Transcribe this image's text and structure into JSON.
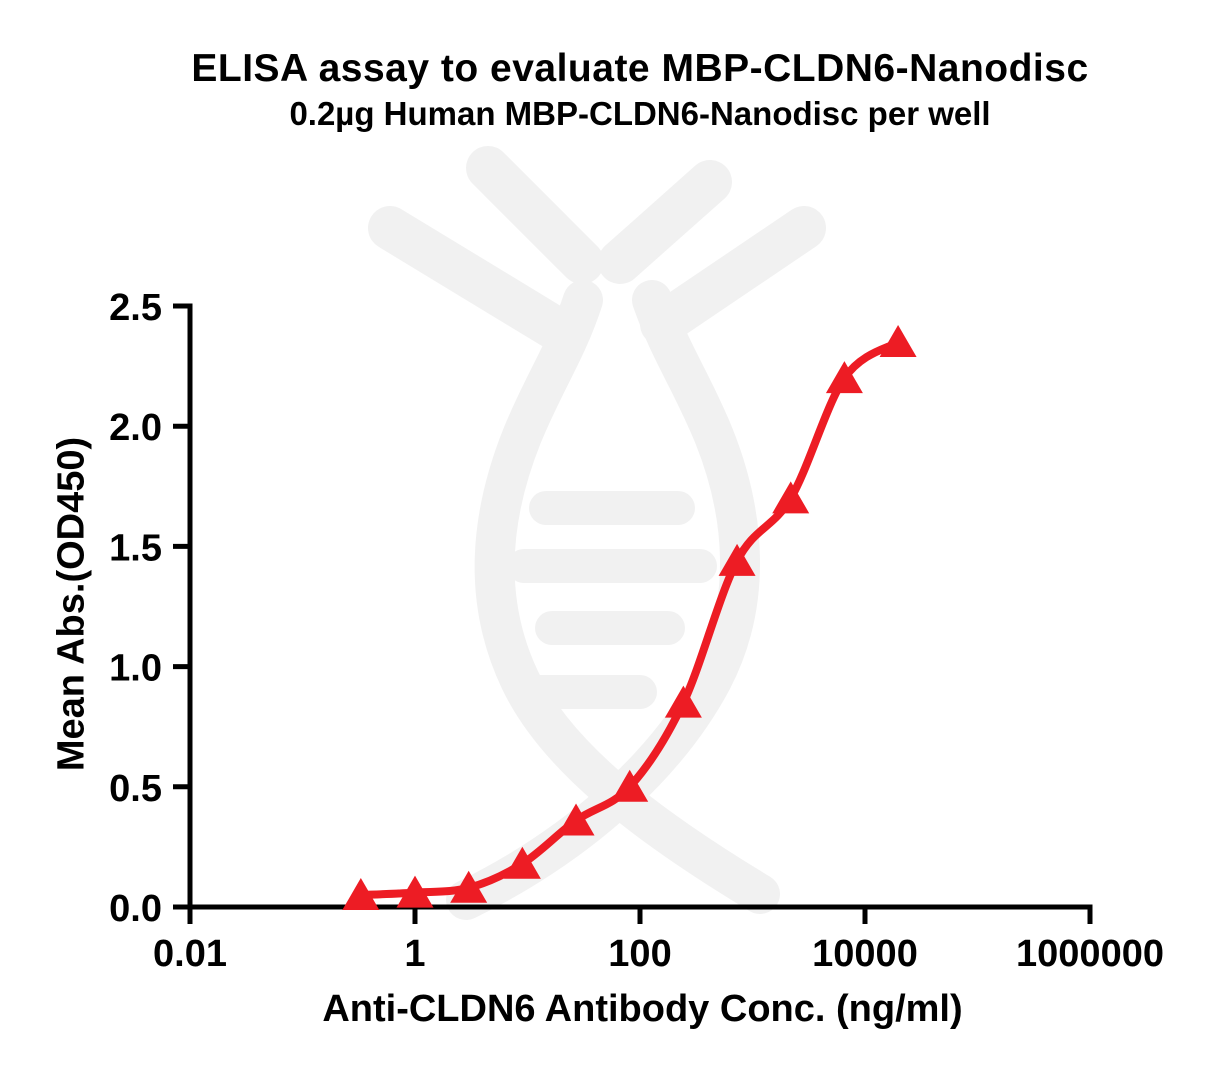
{
  "chart_data": {
    "type": "scatter",
    "curve": "4PL-sigmoid-fit",
    "title": "ELISA assay to evaluate MBP-CLDN6-Nanodisc",
    "subtitle": "0.2µg Human MBP-CLDN6-Nanodisc per well",
    "xlabel": "Anti-CLDN6 Antibody Conc. (ng/ml)",
    "ylabel": "Mean Abs.(OD450)",
    "x_scale": "log10",
    "xlim": [
      0.01,
      1000000
    ],
    "ylim": [
      0,
      2.5
    ],
    "grid": false,
    "legend": "none",
    "x_ticks": [
      {
        "label": "0.01",
        "value": 0.01
      },
      {
        "label": "1",
        "value": 1
      },
      {
        "label": "100",
        "value": 100
      },
      {
        "label": "10000",
        "value": 10000
      },
      {
        "label": "1000000",
        "value": 1000000
      }
    ],
    "y_ticks": [
      {
        "label": "0.0",
        "value": 0.0
      },
      {
        "label": "0.5",
        "value": 0.5
      },
      {
        "label": "1.0",
        "value": 1.0
      },
      {
        "label": "1.5",
        "value": 1.5
      },
      {
        "label": "2.0",
        "value": 2.0
      },
      {
        "label": "2.5",
        "value": 2.5
      }
    ],
    "series": [
      {
        "marker": "triangle-up",
        "color": "#ED1C24",
        "points": [
          {
            "x": 0.33,
            "y": 0.05
          },
          {
            "x": 1,
            "y": 0.06
          },
          {
            "x": 3,
            "y": 0.08
          },
          {
            "x": 9,
            "y": 0.18
          },
          {
            "x": 27,
            "y": 0.36
          },
          {
            "x": 81,
            "y": 0.5
          },
          {
            "x": 243,
            "y": 0.85
          },
          {
            "x": 729,
            "y": 1.44
          },
          {
            "x": 2187,
            "y": 1.7
          },
          {
            "x": 6561,
            "y": 2.2
          },
          {
            "x": 19683,
            "y": 2.35
          }
        ]
      }
    ],
    "colors": {
      "curve": "#ED1C24",
      "axis": "#000000",
      "text": "#000000",
      "watermark": "#F1F1F1",
      "background": "#FFFFFF"
    }
  }
}
